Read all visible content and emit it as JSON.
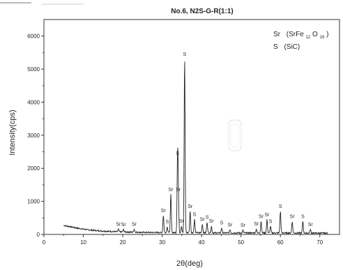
{
  "chart_data": {
    "type": "line",
    "title": "No.6, N2S-G-R(1:1)",
    "xlabel": "2θ(deg)",
    "ylabel": "Intensity(cps)",
    "xlim": [
      0,
      75
    ],
    "ylim": [
      0,
      6500
    ],
    "x_ticks": [
      0,
      10,
      20,
      30,
      40,
      50,
      60,
      70
    ],
    "y_ticks": [
      0,
      1000,
      2000,
      3000,
      4000,
      5000,
      6000
    ],
    "grid": false,
    "legend_position": "top-right",
    "legend": [
      {
        "symbol": "Sr",
        "phase": "(SrFe",
        "sub1": "12",
        "mid": "O",
        "sub2": "19",
        "end": ")"
      },
      {
        "symbol": "S",
        "phase": "(SiC)"
      }
    ],
    "background": {
      "x": [
        5.0,
        6.0,
        8.0,
        10.0,
        12.0,
        15.0,
        18.0,
        20.0,
        22.0,
        25.0,
        28.0,
        30.0,
        40.0,
        50.0,
        60.0,
        70.0,
        72.0
      ],
      "y": [
        270,
        250,
        200,
        160,
        130,
        100,
        85,
        75,
        70,
        62,
        58,
        55,
        50,
        45,
        45,
        40,
        40
      ]
    },
    "peaks": [
      {
        "x": 18.9,
        "y": 80,
        "label": "Sr"
      },
      {
        "x": 20.2,
        "y": 70,
        "label": "Sr"
      },
      {
        "x": 22.9,
        "y": 90,
        "label": "Sr"
      },
      {
        "x": 30.3,
        "y": 520,
        "label": "Sr"
      },
      {
        "x": 31.3,
        "y": 180,
        "label": "S"
      },
      {
        "x": 32.2,
        "y": 1150,
        "label": "Sr"
      },
      {
        "x": 33.9,
        "y": 2250,
        "label": "S"
      },
      {
        "x": 34.1,
        "y": 1150,
        "label": "Sr"
      },
      {
        "x": 34.9,
        "y": 200,
        "label": "Sr"
      },
      {
        "x": 35.7,
        "y": 5250,
        "label": "S"
      },
      {
        "x": 37.1,
        "y": 650,
        "label": "Sr"
      },
      {
        "x": 38.2,
        "y": 400,
        "label": "S"
      },
      {
        "x": 40.2,
        "y": 260,
        "label": "Sr"
      },
      {
        "x": 41.4,
        "y": 320,
        "label": "S"
      },
      {
        "x": 42.5,
        "y": 200,
        "label": "Sr"
      },
      {
        "x": 45.1,
        "y": 150,
        "label": "S"
      },
      {
        "x": 47.2,
        "y": 90,
        "label": "Sr"
      },
      {
        "x": 50.5,
        "y": 80,
        "label": "Sr"
      },
      {
        "x": 53.9,
        "y": 120,
        "label": "Sr"
      },
      {
        "x": 55.1,
        "y": 350,
        "label": "Sr"
      },
      {
        "x": 56.6,
        "y": 400,
        "label": "Sr"
      },
      {
        "x": 57.5,
        "y": 200,
        "label": "S"
      },
      {
        "x": 60.0,
        "y": 650,
        "label": "S"
      },
      {
        "x": 63.0,
        "y": 350,
        "label": "Sr"
      },
      {
        "x": 65.7,
        "y": 350,
        "label": "S"
      },
      {
        "x": 67.6,
        "y": 110,
        "label": "Sr"
      }
    ]
  }
}
